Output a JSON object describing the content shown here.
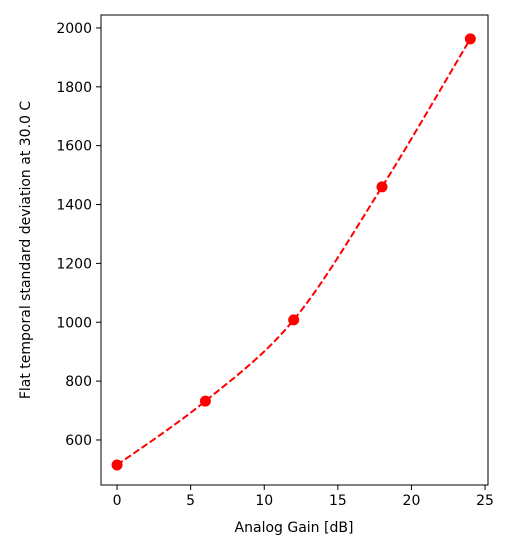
{
  "chart_data": {
    "type": "line",
    "xlabel": "Analog Gain [dB]",
    "ylabel": "Flat temporal standard deviation at 30.0 C",
    "x": [
      0,
      6,
      12,
      18,
      24
    ],
    "series": [
      {
        "color": "#ff0000",
        "line_style": "dashed",
        "marker": "circle",
        "values": [
          515,
          732,
          1008,
          1460,
          1963
        ]
      }
    ],
    "xlim": [
      -1.09,
      25.2
    ],
    "xticks": [
      0,
      5,
      10,
      15,
      20,
      25
    ],
    "ylim": [
      447,
      2044
    ],
    "yticks": [
      600,
      800,
      1000,
      1200,
      1400,
      1600,
      1800,
      2000
    ]
  }
}
